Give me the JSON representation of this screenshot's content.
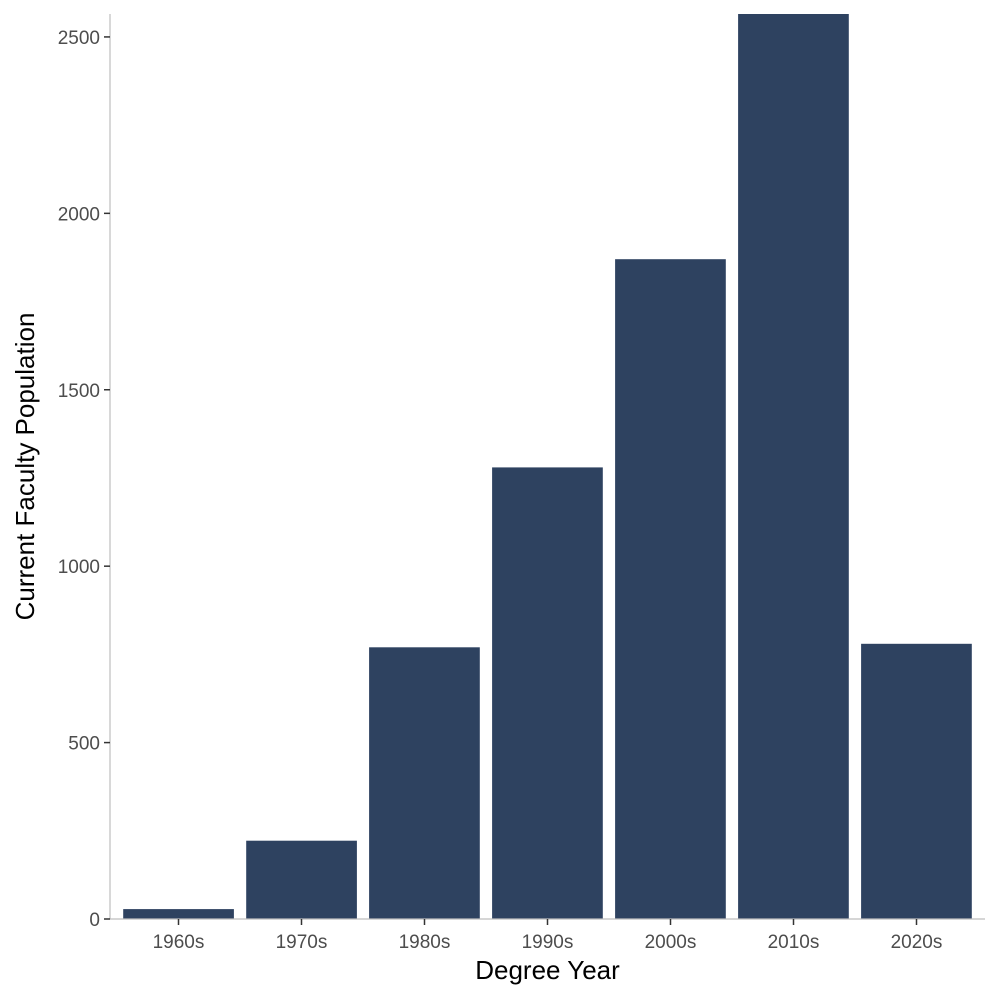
{
  "chart_data": {
    "type": "bar",
    "title": "",
    "xlabel": "Degree Year",
    "ylabel": "Current Faculty Population",
    "categories": [
      "1960s",
      "1970s",
      "1980s",
      "1990s",
      "2000s",
      "2010s",
      "2020s"
    ],
    "values": [
      28,
      222,
      770,
      1280,
      1870,
      2565,
      780
    ],
    "ylim": [
      0,
      2565
    ],
    "yticks": [
      0,
      500,
      1000,
      1500,
      2000,
      2500
    ],
    "grid": false,
    "legend": "none",
    "bar_color": "#2e4260"
  }
}
